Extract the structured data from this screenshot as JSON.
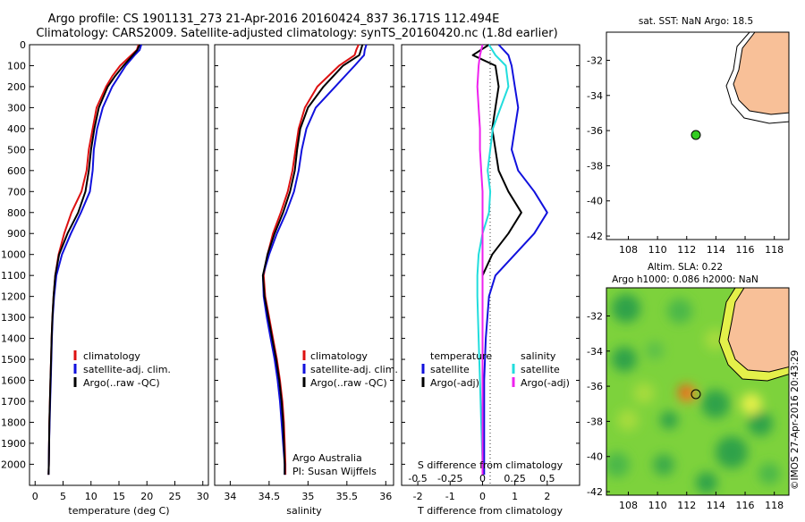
{
  "header": {
    "line1": "Argo profile: CS 1901131_273 21-Apr-2016 20160424_837 36.171S 112.494E",
    "line2": "Climatology: CARS2009. Satellite-adjusted climatology: synTS_20160420.nc (1.8d earlier)"
  },
  "colors": {
    "climatology": "#dd1111",
    "satellite": "#1111dd",
    "argo": "#000000",
    "satellite_salinity": "#22dddd",
    "argo_salinity": "#ee22ee",
    "land": "#f8c098"
  },
  "legend_tp": {
    "climatology": "climatology",
    "satellite": "satellite-adj. clim.",
    "argo": "Argo(..raw -QC)"
  },
  "legend_diff": {
    "temp_title": "temperature",
    "sal_title": "salinity",
    "satellite": "satellite",
    "argo": "Argo(-adj)"
  },
  "credits": {
    "line1": "Argo Australia",
    "line2": "PI: Susan Wijffels"
  },
  "watermark": "©IMOS 27-Apr-2016 20:43:29",
  "map1": {
    "title": "sat. SST: NaN Argo: 18.5",
    "xticks": [
      "108",
      "110",
      "112",
      "114",
      "116",
      "118"
    ],
    "yticks": [
      "-32",
      "-34",
      "-36",
      "-38",
      "-40",
      "-42"
    ]
  },
  "map2": {
    "title1": "Altim. SLA: 0.22",
    "title2": "Argo h1000: 0.086 h2000: NaN",
    "xticks": [
      "108",
      "110",
      "112",
      "114",
      "116",
      "118"
    ],
    "yticks": [
      "-32",
      "-34",
      "-36",
      "-38",
      "-40",
      "-42"
    ]
  },
  "chart_data": [
    {
      "type": "line",
      "xlabel": "temperature (deg C)",
      "ylabel": "",
      "xlim": [
        -1,
        31
      ],
      "ylim": [
        2050,
        0
      ],
      "xticks": [
        "0",
        "5",
        "10",
        "15",
        "20",
        "25",
        "30"
      ],
      "yticks": [
        "0",
        "100",
        "200",
        "300",
        "400",
        "500",
        "600",
        "700",
        "800",
        "900",
        "1000",
        "1100",
        "1200",
        "1300",
        "1400",
        "1500",
        "1600",
        "1700",
        "1800",
        "1900",
        "2000"
      ],
      "series": [
        {
          "name": "climatology",
          "depth": [
            0,
            25,
            50,
            100,
            150,
            200,
            300,
            400,
            500,
            600,
            700,
            800,
            900,
            1000,
            1100,
            1200,
            1300,
            1400,
            1500,
            1600,
            1700,
            1800,
            1900,
            2000,
            2050
          ],
          "values": [
            18.5,
            18.2,
            17.2,
            15.2,
            13.8,
            12.7,
            11.0,
            10.3,
            9.6,
            9.2,
            8.3,
            6.5,
            5.2,
            4.2,
            3.6,
            3.3,
            3.1,
            2.95,
            2.85,
            2.75,
            2.65,
            2.55,
            2.5,
            2.45,
            2.4
          ]
        },
        {
          "name": "satellite-adj. clim.",
          "depth": [
            0,
            25,
            50,
            100,
            150,
            200,
            300,
            400,
            500,
            600,
            700,
            800,
            900,
            1000,
            1100,
            1200,
            1300,
            1400,
            1500,
            1600,
            1700,
            1800,
            1900,
            2000,
            2050
          ],
          "values": [
            19.0,
            18.7,
            17.8,
            16.2,
            15.0,
            13.8,
            12.1,
            11.1,
            10.5,
            10.3,
            9.8,
            8.2,
            6.4,
            4.8,
            3.8,
            3.4,
            3.15,
            3.0,
            2.9,
            2.8,
            2.7,
            2.6,
            2.5,
            2.45,
            2.4
          ]
        },
        {
          "name": "Argo(..raw -QC)",
          "depth": [
            0,
            25,
            50,
            100,
            150,
            200,
            300,
            400,
            500,
            600,
            700,
            800,
            900,
            1000,
            1100,
            1200,
            1300,
            1400,
            1500,
            1600,
            1700,
            1800,
            1900,
            2000,
            2050
          ],
          "values": [
            18.7,
            18.3,
            17.5,
            15.8,
            14.3,
            13.0,
            11.4,
            10.6,
            10.0,
            9.6,
            9.0,
            7.7,
            5.8,
            4.3,
            3.6,
            3.3,
            3.1,
            2.95,
            2.85,
            2.75,
            2.65,
            2.55,
            2.5,
            2.45,
            2.4
          ]
        }
      ]
    },
    {
      "type": "line",
      "xlabel": "salinity",
      "ylabel": "",
      "xlim": [
        33.8,
        36.1
      ],
      "ylim": [
        2050,
        0
      ],
      "xticks": [
        "34",
        "34.5",
        "35",
        "35.5",
        "36"
      ],
      "series": [
        {
          "name": "climatology",
          "depth": [
            0,
            25,
            50,
            100,
            200,
            300,
            400,
            500,
            600,
            700,
            800,
            900,
            1000,
            1100,
            1200,
            1300,
            1400,
            1500,
            1600,
            1700,
            1800,
            1900,
            2000,
            2050
          ],
          "values": [
            35.65,
            35.62,
            35.6,
            35.4,
            35.12,
            34.96,
            34.88,
            34.84,
            34.8,
            34.74,
            34.65,
            34.55,
            34.48,
            34.43,
            34.45,
            34.5,
            34.55,
            34.6,
            34.64,
            34.67,
            34.69,
            34.7,
            34.71,
            34.71
          ]
        },
        {
          "name": "satellite-adj. clim.",
          "depth": [
            0,
            25,
            50,
            100,
            200,
            300,
            400,
            500,
            600,
            700,
            800,
            900,
            1000,
            1100,
            1200,
            1300,
            1400,
            1500,
            1600,
            1700,
            1800,
            1900,
            2000,
            2050
          ],
          "values": [
            35.75,
            35.73,
            35.72,
            35.6,
            35.35,
            35.1,
            34.98,
            34.92,
            34.88,
            34.82,
            34.72,
            34.6,
            34.5,
            34.42,
            34.43,
            34.47,
            34.52,
            34.57,
            34.61,
            34.64,
            34.66,
            34.68,
            34.7,
            34.7
          ]
        },
        {
          "name": "Argo(..raw -QC)",
          "depth": [
            0,
            25,
            50,
            100,
            200,
            300,
            400,
            500,
            600,
            700,
            800,
            900,
            1000,
            1100,
            1200,
            1300,
            1400,
            1500,
            1600,
            1700,
            1800,
            1900,
            2000,
            2050
          ],
          "values": [
            35.7,
            35.68,
            35.66,
            35.45,
            35.2,
            35.0,
            34.9,
            34.86,
            34.83,
            34.77,
            34.68,
            34.57,
            34.48,
            34.42,
            34.44,
            34.49,
            34.54,
            34.59,
            34.63,
            34.66,
            34.68,
            34.69,
            34.7,
            34.7
          ]
        }
      ]
    },
    {
      "type": "line",
      "xlabel": "T difference from climatology",
      "xlabel_top": "S difference from climatology",
      "xlim": [
        -2.5,
        3
      ],
      "ylim": [
        2050,
        0
      ],
      "xticks": [
        "-2",
        "-1",
        "0",
        "1",
        "2"
      ],
      "xticks_top": [
        "-0.5",
        "-0.25",
        "0",
        "0.25",
        "0.5"
      ],
      "series": [
        {
          "name": "temperature satellite",
          "depth": [
            0,
            50,
            100,
            200,
            300,
            400,
            500,
            600,
            700,
            800,
            900,
            1000,
            1100,
            1200,
            1400,
            1600,
            1800,
            2000,
            2050
          ],
          "values": [
            0.5,
            0.8,
            0.9,
            1.0,
            1.1,
            1.0,
            0.9,
            1.1,
            1.6,
            2.0,
            1.6,
            1.0,
            0.4,
            0.2,
            0.1,
            0.05,
            0.05,
            0.05,
            0.05
          ]
        },
        {
          "name": "temperature Argo(-adj)",
          "depth": [
            0,
            50,
            100,
            200,
            300,
            400,
            500,
            600,
            700,
            800,
            900,
            1000,
            1100,
            1200,
            1400,
            1600,
            1800,
            2000,
            2050
          ],
          "values": [
            0.2,
            -0.3,
            0.4,
            0.5,
            0.4,
            0.3,
            0.4,
            0.5,
            0.8,
            1.2,
            0.8,
            0.3,
            0.0,
            0.0,
            0.0,
            0.0,
            0.0,
            0.0,
            0.0
          ]
        },
        {
          "name": "salinity satellite",
          "depth": [
            0,
            50,
            100,
            200,
            300,
            400,
            500,
            600,
            700,
            800,
            900,
            1000,
            1100,
            1200,
            1400,
            1600,
            1800,
            2000,
            2050
          ],
          "values": [
            0.05,
            0.1,
            0.18,
            0.2,
            0.14,
            0.08,
            0.06,
            0.04,
            0.06,
            0.05,
            0.0,
            -0.03,
            -0.04,
            -0.04,
            -0.03,
            -0.02,
            -0.01,
            0.0,
            0.0
          ]
        },
        {
          "name": "salinity Argo(-adj)",
          "depth": [
            0,
            50,
            100,
            200,
            300,
            400,
            500,
            600,
            700,
            800,
            900,
            1000,
            1100,
            1200,
            1400,
            1600,
            1800,
            2000,
            2050
          ],
          "values": [
            0.0,
            -0.02,
            -0.03,
            -0.04,
            -0.03,
            -0.02,
            -0.02,
            -0.01,
            0.0,
            0.0,
            0.0,
            0.0,
            0.0,
            0.0,
            0.0,
            0.0,
            0.0,
            0.0,
            0.0
          ]
        }
      ]
    }
  ]
}
